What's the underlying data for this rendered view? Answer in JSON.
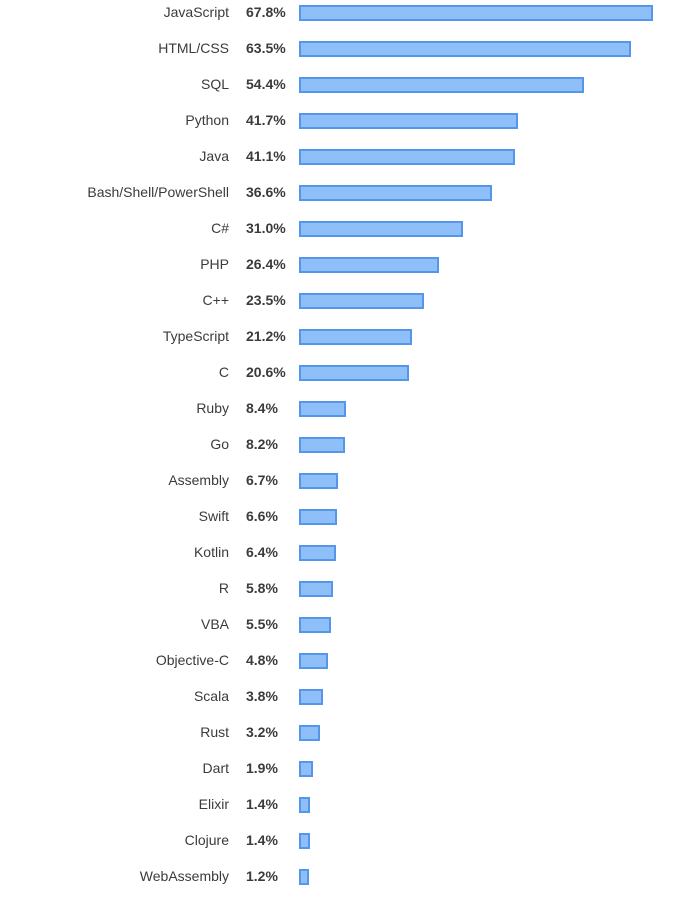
{
  "chart_data": {
    "type": "bar",
    "orientation": "horizontal",
    "colors": {
      "bar_fill": "#8fbff8",
      "bar_border": "#5595ea",
      "text": "#3b3b3b"
    },
    "xlim": [
      0,
      67.8
    ],
    "categories": [
      "JavaScript",
      "HTML/CSS",
      "SQL",
      "Python",
      "Java",
      "Bash/Shell/PowerShell",
      "C#",
      "PHP",
      "C++",
      "TypeScript",
      "C",
      "Ruby",
      "Go",
      "Assembly",
      "Swift",
      "Kotlin",
      "R",
      "VBA",
      "Objective-C",
      "Scala",
      "Rust",
      "Dart",
      "Elixir",
      "Clojure",
      "WebAssembly"
    ],
    "values": [
      67.8,
      63.5,
      54.4,
      41.7,
      41.1,
      36.6,
      31.0,
      26.4,
      23.5,
      21.2,
      20.6,
      8.4,
      8.2,
      6.7,
      6.6,
      6.4,
      5.8,
      5.5,
      4.8,
      3.8,
      3.2,
      1.9,
      1.4,
      1.4,
      1.2
    ],
    "value_labels": [
      "67.8%",
      "63.5%",
      "54.4%",
      "41.7%",
      "41.1%",
      "36.6%",
      "31.0%",
      "26.4%",
      "23.5%",
      "21.2%",
      "20.6%",
      "8.4%",
      "8.2%",
      "6.7%",
      "6.6%",
      "6.4%",
      "5.8%",
      "5.5%",
      "4.8%",
      "3.8%",
      "3.2%",
      "1.9%",
      "1.4%",
      "1.4%",
      "1.2%"
    ]
  }
}
